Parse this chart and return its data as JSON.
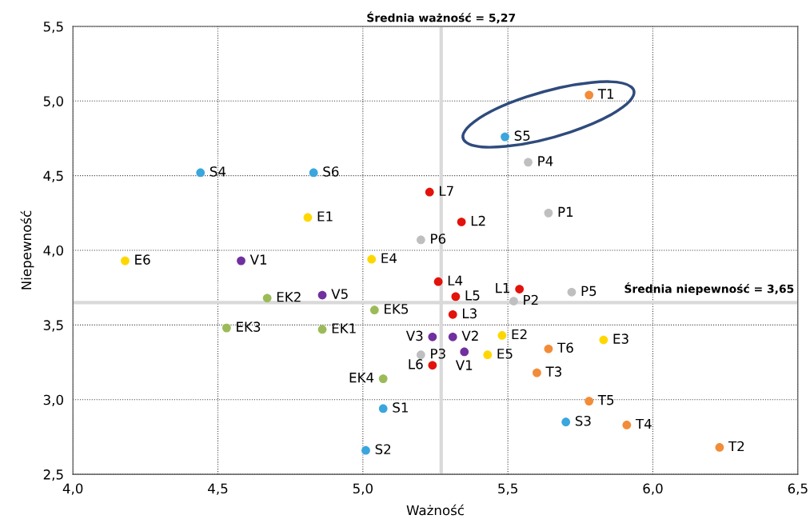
{
  "chart_data": {
    "type": "scatter",
    "xlabel": "Ważność",
    "ylabel": "Niepewność",
    "xlim": [
      4.0,
      6.5
    ],
    "ylim": [
      2.5,
      5.5
    ],
    "xticks": [
      {
        "value": 4.0,
        "label": "4,0"
      },
      {
        "value": 4.5,
        "label": "4,5"
      },
      {
        "value": 5.0,
        "label": "5,0"
      },
      {
        "value": 5.5,
        "label": "5,5"
      },
      {
        "value": 6.0,
        "label": "6,0"
      },
      {
        "value": 6.5,
        "label": "6,5"
      }
    ],
    "yticks": [
      {
        "value": 2.5,
        "label": "2,5"
      },
      {
        "value": 3.0,
        "label": "3,0"
      },
      {
        "value": 3.5,
        "label": "3,5"
      },
      {
        "value": 4.0,
        "label": "4,0"
      },
      {
        "value": 4.5,
        "label": "4,5"
      },
      {
        "value": 5.0,
        "label": "5,0"
      },
      {
        "value": 5.5,
        "label": "5,5"
      }
    ],
    "grid": true,
    "marker": "circle",
    "series": [
      {
        "color": "#f28c38",
        "x": [
          5.78,
          6.23,
          5.6,
          5.91,
          5.78,
          5.64
        ],
        "values": [
          5.04,
          2.68,
          3.18,
          2.83,
          2.99,
          3.34
        ],
        "value_labels": [
          "T1",
          "T2",
          "T3",
          "T4",
          "T5",
          "T6"
        ]
      },
      {
        "color": "#3aa6dd",
        "x": [
          5.07,
          5.01,
          5.7,
          4.44,
          5.49,
          4.83
        ],
        "values": [
          2.94,
          2.66,
          2.85,
          4.52,
          4.76,
          4.52
        ],
        "value_labels": [
          "S1",
          "S2",
          "S3",
          "S4",
          "S5",
          "S6"
        ]
      },
      {
        "color": "#bfbfbf",
        "x": [
          5.64,
          5.52,
          5.2,
          5.57,
          5.72,
          5.2
        ],
        "values": [
          4.25,
          3.66,
          3.3,
          4.59,
          3.72,
          4.07
        ],
        "value_labels": [
          "P1",
          "P2",
          "P3",
          "P4",
          "P5",
          "P6"
        ]
      },
      {
        "color": "#e3120b",
        "x": [
          5.54,
          5.34,
          5.31,
          5.26,
          5.32,
          5.24,
          5.23
        ],
        "values": [
          3.74,
          4.19,
          3.57,
          3.79,
          3.69,
          3.23,
          4.39
        ],
        "value_labels": [
          "L1",
          "L2",
          "L3",
          "L4",
          "L5",
          "L6",
          "L7"
        ]
      },
      {
        "color": "#ffd700",
        "x": [
          4.81,
          5.48,
          5.83,
          5.03,
          5.43,
          4.18
        ],
        "values": [
          4.22,
          3.43,
          3.4,
          3.94,
          3.3,
          3.93
        ],
        "value_labels": [
          "E1",
          "E2",
          "E3",
          "E4",
          "E5",
          "E6"
        ]
      },
      {
        "color": "#7030a0",
        "x": [
          4.58,
          5.31,
          5.24,
          5.35,
          4.86
        ],
        "values": [
          3.93,
          3.42,
          3.42,
          3.32,
          3.7
        ],
        "value_labels": [
          "V1",
          "V2",
          "V3",
          "V1",
          "V5"
        ]
      },
      {
        "color": "#9bbb59",
        "x": [
          4.86,
          4.67,
          4.53,
          5.07,
          5.04
        ],
        "values": [
          3.47,
          3.68,
          3.48,
          3.14,
          3.6
        ],
        "value_labels": [
          "EK1",
          "EK2",
          "EK3",
          "EK4",
          "EK5"
        ]
      }
    ],
    "ref_lines": [
      {
        "axis": "x",
        "value": 5.27,
        "label": "Średnia ważność = 5,27",
        "color": "#d9d9d9"
      },
      {
        "axis": "y",
        "value": 3.65,
        "label": "Średnia niepewność = 3,65",
        "color": "#d9d9d9"
      }
    ]
  }
}
